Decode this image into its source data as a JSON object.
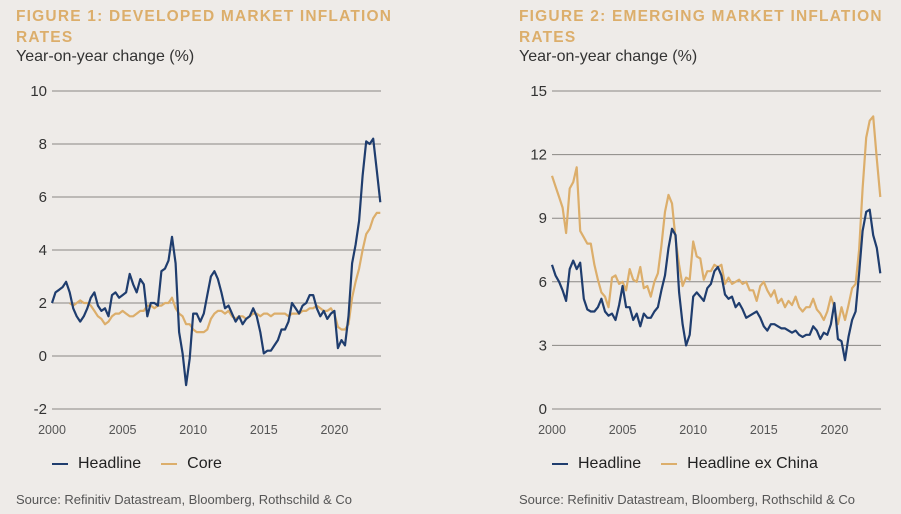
{
  "colors": {
    "headline": "#1f3d6e",
    "secondary": "#dcae6b",
    "title": "#dcae6b",
    "grid": "#8a8784",
    "background": "#eeebe8"
  },
  "source_text": "Source: Refinitiv Datastream, Bloomberg, Rothschild & Co",
  "chart_data": [
    {
      "type": "line",
      "title": "FIGURE 1: DEVELOPED MARKET INFLATION RATES",
      "subtitle": "Year-on-year change (%)",
      "xlabel": "",
      "ylabel": "Year-on-year change (%)",
      "ylim": [
        -2,
        10
      ],
      "yticks": [
        "10",
        "8",
        "6",
        "4",
        "2",
        "0",
        "-2"
      ],
      "ytick_values": [
        10,
        8,
        6,
        4,
        2,
        0,
        -2
      ],
      "xlim": [
        2000,
        2023.3
      ],
      "xticks": [
        "2000",
        "2005",
        "2010",
        "2015",
        "2020"
      ],
      "xtick_values": [
        2000,
        2005,
        2010,
        2015,
        2020
      ],
      "grid": true,
      "legend_position": "bottom-left",
      "legend": [
        "Headline",
        "Core"
      ],
      "series": [
        {
          "name": "Headline",
          "color_key": "headline",
          "x": [
            2000,
            2000.25,
            2000.5,
            2000.75,
            2001,
            2001.25,
            2001.5,
            2001.75,
            2002,
            2002.25,
            2002.5,
            2002.75,
            2003,
            2003.25,
            2003.5,
            2003.75,
            2004,
            2004.25,
            2004.5,
            2004.75,
            2005,
            2005.25,
            2005.5,
            2005.75,
            2006,
            2006.25,
            2006.5,
            2006.75,
            2007,
            2007.25,
            2007.5,
            2007.75,
            2008,
            2008.25,
            2008.5,
            2008.75,
            2009,
            2009.25,
            2009.5,
            2009.75,
            2010,
            2010.25,
            2010.5,
            2010.75,
            2011,
            2011.25,
            2011.5,
            2011.75,
            2012,
            2012.25,
            2012.5,
            2012.75,
            2013,
            2013.25,
            2013.5,
            2013.75,
            2014,
            2014.25,
            2014.5,
            2014.75,
            2015,
            2015.25,
            2015.5,
            2015.75,
            2016,
            2016.25,
            2016.5,
            2016.75,
            2017,
            2017.25,
            2017.5,
            2017.75,
            2018,
            2018.25,
            2018.5,
            2018.75,
            2019,
            2019.25,
            2019.5,
            2019.75,
            2020,
            2020.25,
            2020.5,
            2020.75,
            2021,
            2021.25,
            2021.5,
            2021.75,
            2022,
            2022.25,
            2022.5,
            2022.75,
            2023,
            2023.25
          ],
          "values": [
            2.0,
            2.4,
            2.5,
            2.6,
            2.8,
            2.4,
            1.8,
            1.5,
            1.3,
            1.5,
            1.8,
            2.2,
            2.4,
            1.9,
            1.7,
            1.8,
            1.5,
            2.3,
            2.4,
            2.2,
            2.3,
            2.4,
            3.1,
            2.7,
            2.4,
            2.9,
            2.7,
            1.5,
            2.0,
            2.0,
            1.9,
            3.2,
            3.3,
            3.6,
            4.5,
            3.5,
            0.9,
            0.1,
            -1.1,
            -0.1,
            1.6,
            1.6,
            1.3,
            1.6,
            2.3,
            3.0,
            3.2,
            2.9,
            2.4,
            1.8,
            1.9,
            1.6,
            1.3,
            1.5,
            1.2,
            1.4,
            1.5,
            1.8,
            1.5,
            0.9,
            0.1,
            0.2,
            0.2,
            0.4,
            0.6,
            1.0,
            1.0,
            1.3,
            2.0,
            1.8,
            1.6,
            1.9,
            2.0,
            2.3,
            2.3,
            1.8,
            1.5,
            1.7,
            1.4,
            1.6,
            1.7,
            0.3,
            0.6,
            0.4,
            1.5,
            3.5,
            4.2,
            5.1,
            6.8,
            8.1,
            8.0,
            8.2,
            7.0,
            5.8
          ]
        },
        {
          "name": "Core",
          "color_key": "secondary",
          "x": [
            2001.25,
            2001.5,
            2001.75,
            2002,
            2002.25,
            2002.5,
            2002.75,
            2003,
            2003.25,
            2003.5,
            2003.75,
            2004,
            2004.25,
            2004.5,
            2004.75,
            2005,
            2005.25,
            2005.5,
            2005.75,
            2006,
            2006.25,
            2006.5,
            2006.75,
            2007,
            2007.25,
            2007.5,
            2007.75,
            2008,
            2008.25,
            2008.5,
            2008.75,
            2009,
            2009.25,
            2009.5,
            2009.75,
            2010,
            2010.25,
            2010.5,
            2010.75,
            2011,
            2011.25,
            2011.5,
            2011.75,
            2012,
            2012.25,
            2012.5,
            2012.75,
            2013,
            2013.25,
            2013.5,
            2013.75,
            2014,
            2014.25,
            2014.5,
            2014.75,
            2015,
            2015.25,
            2015.5,
            2015.75,
            2016,
            2016.25,
            2016.5,
            2016.75,
            2017,
            2017.25,
            2017.5,
            2017.75,
            2018,
            2018.25,
            2018.5,
            2018.75,
            2019,
            2019.25,
            2019.5,
            2019.75,
            2020,
            2020.25,
            2020.5,
            2020.75,
            2021,
            2021.25,
            2021.5,
            2021.75,
            2022,
            2022.25,
            2022.5,
            2022.75,
            2023,
            2023.25
          ],
          "values": [
            2.0,
            1.9,
            2.0,
            2.1,
            2.0,
            2.0,
            1.9,
            1.7,
            1.5,
            1.4,
            1.2,
            1.3,
            1.5,
            1.6,
            1.6,
            1.7,
            1.6,
            1.5,
            1.5,
            1.6,
            1.7,
            1.7,
            1.9,
            1.9,
            1.8,
            1.9,
            1.9,
            2.0,
            2.0,
            2.2,
            1.8,
            1.6,
            1.5,
            1.2,
            1.2,
            1.0,
            0.9,
            0.9,
            0.9,
            1.0,
            1.4,
            1.6,
            1.7,
            1.7,
            1.6,
            1.7,
            1.5,
            1.4,
            1.5,
            1.5,
            1.4,
            1.5,
            1.6,
            1.6,
            1.5,
            1.6,
            1.6,
            1.5,
            1.6,
            1.6,
            1.6,
            1.6,
            1.5,
            1.6,
            1.6,
            1.6,
            1.7,
            1.7,
            1.8,
            1.8,
            1.9,
            1.8,
            1.7,
            1.7,
            1.8,
            1.6,
            1.1,
            1.0,
            1.0,
            1.2,
            2.2,
            2.8,
            3.3,
            4.0,
            4.6,
            4.8,
            5.2,
            5.4,
            5.4
          ]
        }
      ]
    },
    {
      "type": "line",
      "title": "FIGURE 2: EMERGING MARKET INFLATION RATES",
      "subtitle": "Year-on-year change (%)",
      "xlabel": "",
      "ylabel": "Year-on-year change (%)",
      "ylim": [
        0,
        15
      ],
      "yticks": [
        "15",
        "12",
        "9",
        "6",
        "3",
        "0"
      ],
      "ytick_values": [
        15,
        12,
        9,
        6,
        3,
        0
      ],
      "xlim": [
        2000,
        2023.3
      ],
      "xticks": [
        "2000",
        "2005",
        "2010",
        "2015",
        "2020"
      ],
      "xtick_values": [
        2000,
        2005,
        2010,
        2015,
        2020
      ],
      "grid": true,
      "legend_position": "bottom-left",
      "legend": [
        "Headline",
        "Headline ex China"
      ],
      "series": [
        {
          "name": "Headline",
          "color_key": "headline",
          "x": [
            2000,
            2000.25,
            2000.5,
            2000.75,
            2001,
            2001.25,
            2001.5,
            2001.75,
            2002,
            2002.25,
            2002.5,
            2002.75,
            2003,
            2003.25,
            2003.5,
            2003.75,
            2004,
            2004.25,
            2004.5,
            2004.75,
            2005,
            2005.25,
            2005.5,
            2005.75,
            2006,
            2006.25,
            2006.5,
            2006.75,
            2007,
            2007.25,
            2007.5,
            2007.75,
            2008,
            2008.25,
            2008.5,
            2008.75,
            2009,
            2009.25,
            2009.5,
            2009.75,
            2010,
            2010.25,
            2010.5,
            2010.75,
            2011,
            2011.25,
            2011.5,
            2011.75,
            2012,
            2012.25,
            2012.5,
            2012.75,
            2013,
            2013.25,
            2013.5,
            2013.75,
            2014,
            2014.25,
            2014.5,
            2014.75,
            2015,
            2015.25,
            2015.5,
            2015.75,
            2016,
            2016.25,
            2016.5,
            2016.75,
            2017,
            2017.25,
            2017.5,
            2017.75,
            2018,
            2018.25,
            2018.5,
            2018.75,
            2019,
            2019.25,
            2019.5,
            2019.75,
            2020,
            2020.25,
            2020.5,
            2020.75,
            2021,
            2021.25,
            2021.5,
            2021.75,
            2022,
            2022.25,
            2022.5,
            2022.75,
            2023,
            2023.25
          ],
          "values": [
            6.8,
            6.3,
            6.0,
            5.6,
            5.1,
            6.6,
            7.0,
            6.6,
            6.9,
            5.2,
            4.7,
            4.6,
            4.6,
            4.8,
            5.2,
            4.6,
            4.4,
            4.5,
            4.2,
            4.9,
            5.8,
            4.8,
            4.8,
            4.2,
            4.5,
            3.9,
            4.5,
            4.3,
            4.3,
            4.6,
            4.8,
            5.6,
            6.3,
            7.6,
            8.5,
            8.2,
            5.5,
            4.0,
            3.0,
            3.5,
            5.3,
            5.5,
            5.3,
            5.1,
            5.7,
            5.9,
            6.5,
            6.7,
            6.3,
            5.4,
            5.2,
            5.3,
            4.8,
            5.0,
            4.7,
            4.3,
            4.4,
            4.5,
            4.6,
            4.3,
            3.9,
            3.7,
            4.0,
            4.0,
            3.9,
            3.8,
            3.8,
            3.7,
            3.6,
            3.7,
            3.5,
            3.4,
            3.5,
            3.5,
            3.9,
            3.7,
            3.3,
            3.6,
            3.5,
            4.0,
            5.0,
            3.3,
            3.2,
            2.3,
            3.4,
            4.2,
            4.6,
            6.4,
            8.4,
            9.3,
            9.4,
            8.2,
            7.6,
            6.4
          ]
        },
        {
          "name": "Headline ex China",
          "color_key": "secondary",
          "x": [
            2000,
            2000.25,
            2000.5,
            2000.75,
            2001,
            2001.25,
            2001.5,
            2001.75,
            2002,
            2002.25,
            2002.5,
            2002.75,
            2003,
            2003.25,
            2003.5,
            2003.75,
            2004,
            2004.25,
            2004.5,
            2004.75,
            2005,
            2005.25,
            2005.5,
            2005.75,
            2006,
            2006.25,
            2006.5,
            2006.75,
            2007,
            2007.25,
            2007.5,
            2007.75,
            2008,
            2008.25,
            2008.5,
            2008.75,
            2009,
            2009.25,
            2009.5,
            2009.75,
            2010,
            2010.25,
            2010.5,
            2010.75,
            2011,
            2011.25,
            2011.5,
            2011.75,
            2012,
            2012.25,
            2012.5,
            2012.75,
            2013,
            2013.25,
            2013.5,
            2013.75,
            2014,
            2014.25,
            2014.5,
            2014.75,
            2015,
            2015.25,
            2015.5,
            2015.75,
            2016,
            2016.25,
            2016.5,
            2016.75,
            2017,
            2017.25,
            2017.5,
            2017.75,
            2018,
            2018.25,
            2018.5,
            2018.75,
            2019,
            2019.25,
            2019.5,
            2019.75,
            2020,
            2020.25,
            2020.5,
            2020.75,
            2021,
            2021.25,
            2021.5,
            2021.75,
            2022,
            2022.25,
            2022.5,
            2022.75,
            2023,
            2023.25
          ],
          "values": [
            11.0,
            10.5,
            10.0,
            9.5,
            8.3,
            10.4,
            10.7,
            11.4,
            8.4,
            8.1,
            7.8,
            7.8,
            6.8,
            6.1,
            5.5,
            5.3,
            4.8,
            6.2,
            6.3,
            5.9,
            6.0,
            5.6,
            6.6,
            6.1,
            6.0,
            6.7,
            5.7,
            5.8,
            5.3,
            6.0,
            6.4,
            7.7,
            9.3,
            10.1,
            9.7,
            8.0,
            6.8,
            5.8,
            6.2,
            6.1,
            7.9,
            7.2,
            7.1,
            6.1,
            6.5,
            6.5,
            6.8,
            6.7,
            6.8,
            5.9,
            6.2,
            5.9,
            6.0,
            6.1,
            5.9,
            6.0,
            5.6,
            5.6,
            5.1,
            5.8,
            6.0,
            5.6,
            5.3,
            5.6,
            5.0,
            5.2,
            4.8,
            5.1,
            4.9,
            5.3,
            4.8,
            4.6,
            4.8,
            4.8,
            5.2,
            4.7,
            4.5,
            4.2,
            4.6,
            5.3,
            4.8,
            4.0,
            4.8,
            4.2,
            4.9,
            5.7,
            5.9,
            7.5,
            10.4,
            12.8,
            13.6,
            13.8,
            11.8,
            10.0
          ]
        }
      ]
    }
  ]
}
